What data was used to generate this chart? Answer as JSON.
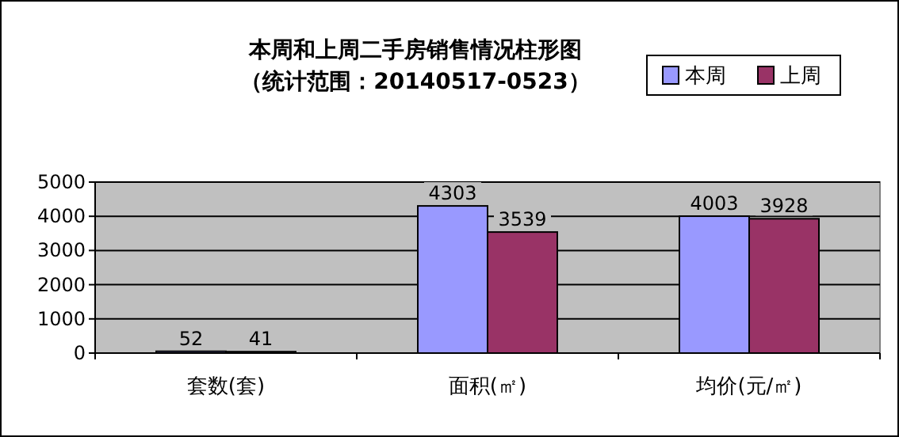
{
  "chart_data": {
    "type": "bar",
    "title": "本周和上周二手房销售情况柱形图",
    "subtitle": "（统计范围：20140517-0523）",
    "categories": [
      "套数(套)",
      "面积(㎡)",
      "均价(元/㎡)"
    ],
    "series": [
      {
        "name": "本周",
        "color": "#9999ff",
        "values": [
          52,
          4303,
          4003
        ]
      },
      {
        "name": "上周",
        "color": "#993366",
        "values": [
          41,
          3539,
          3928
        ]
      }
    ],
    "ylim": [
      0,
      5000
    ],
    "yticks": [
      0,
      1000,
      2000,
      3000,
      4000,
      5000
    ],
    "grid": "y",
    "legend": "top right",
    "data_labels": true
  }
}
